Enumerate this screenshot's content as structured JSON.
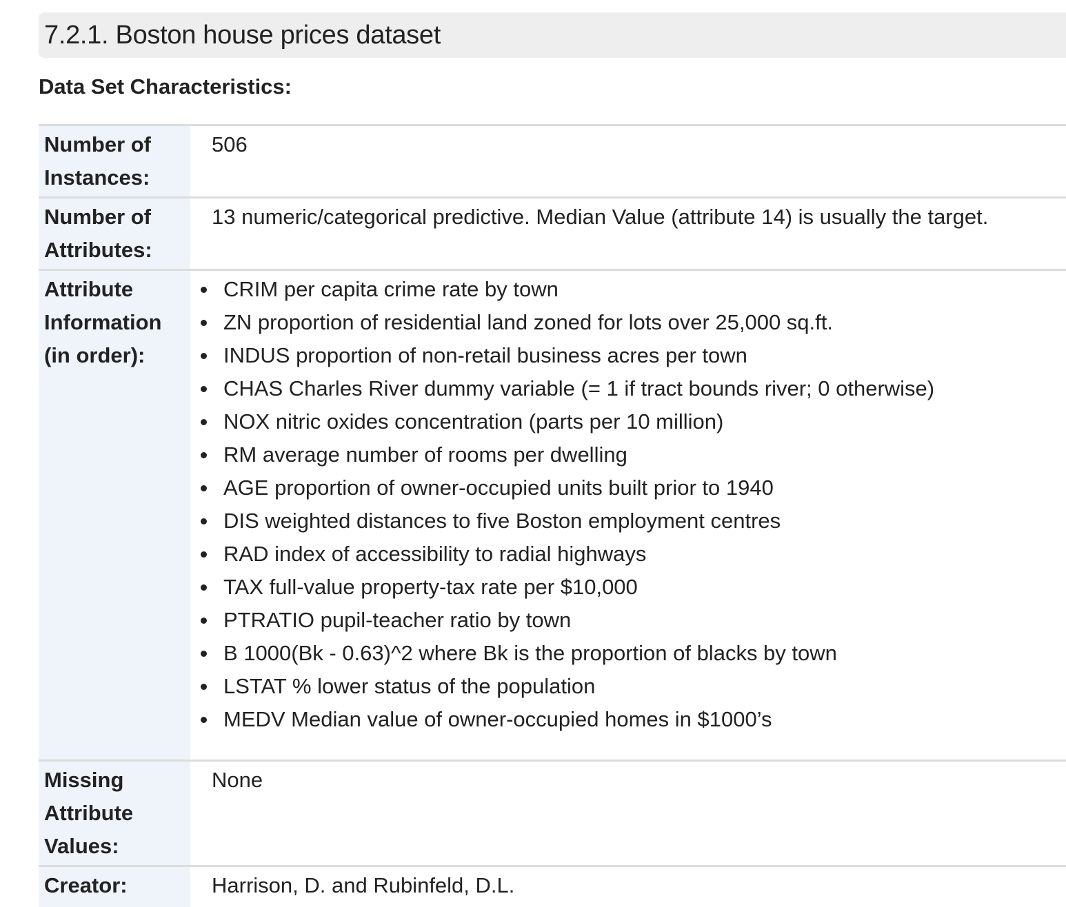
{
  "section": {
    "title": "7.2.1. Boston house prices dataset"
  },
  "characteristics_heading": "Data Set Characteristics:",
  "fields": {
    "instances": {
      "label_line1": "Number of",
      "label_line2": "Instances:",
      "value": "506"
    },
    "attributes": {
      "label_line1": "Number of",
      "label_line2": "Attributes:",
      "value": "13 numeric/categorical predictive. Median Value (attribute 14) is usually the target."
    },
    "attribute_info": {
      "label_line1": "Attribute",
      "label_line2": "Information",
      "label_line3": "(in order):",
      "items": [
        "CRIM per capita crime rate by town",
        "ZN proportion of residential land zoned for lots over 25,000 sq.ft.",
        "INDUS proportion of non-retail business acres per town",
        "CHAS Charles River dummy variable (= 1 if tract bounds river; 0 otherwise)",
        "NOX nitric oxides concentration (parts per 10 million)",
        "RM average number of rooms per dwelling",
        "AGE proportion of owner-occupied units built prior to 1940",
        "DIS weighted distances to five Boston employment centres",
        "RAD index of accessibility to radial highways",
        "TAX full-value property-tax rate per $10,000",
        "PTRATIO pupil-teacher ratio by town",
        "B 1000(Bk - 0.63)^2 where Bk is the proportion of blacks by town",
        "LSTAT % lower status of the population",
        "MEDV Median value of owner-occupied homes in $1000’s"
      ]
    },
    "missing": {
      "label_line1": "Missing",
      "label_line2": "Attribute",
      "label_line3": "Values:",
      "value": "None"
    },
    "creator": {
      "label": "Creator:",
      "value": "Harrison, D. and Rubinfeld, D.L."
    }
  }
}
